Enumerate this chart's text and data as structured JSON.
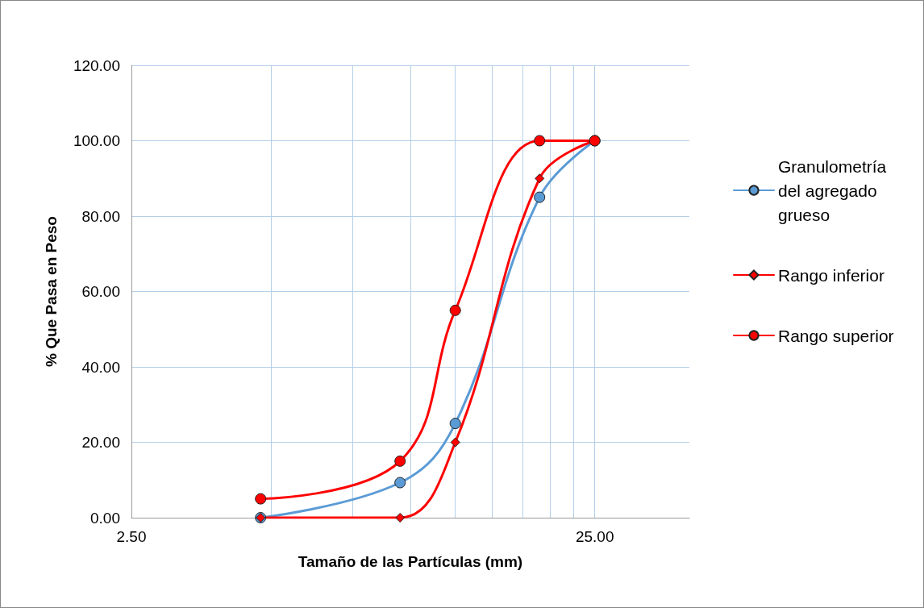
{
  "chart_data": {
    "type": "line",
    "xlabel": "Tamaño de las Partículas (mm)",
    "ylabel": "% Que Pasa en Peso",
    "x": [
      4.75,
      9.5,
      12.5,
      19,
      25
    ],
    "series": [
      {
        "name": "Granulometría del agregado grueso",
        "color": "#5b9bd5",
        "marker": "circle",
        "values": [
          0,
          9.3,
          25,
          85,
          100
        ]
      },
      {
        "name": "Rango inferior",
        "color": "#ff0000",
        "marker": "diamond",
        "values": [
          0,
          0,
          20,
          90,
          100
        ]
      },
      {
        "name": "Rango superior",
        "color": "#ff0000",
        "marker": "circle",
        "values": [
          5,
          15,
          55,
          100,
          100
        ]
      }
    ],
    "log": "x",
    "xlim": [
      2.5,
      40
    ],
    "xticks": [
      {
        "value": 2.5,
        "label": "2.50"
      },
      {
        "value": 5,
        "label": null
      },
      {
        "value": 7.5,
        "label": null
      },
      {
        "value": 10,
        "label": null
      },
      {
        "value": 12.5,
        "label": null
      },
      {
        "value": 15,
        "label": null
      },
      {
        "value": 17.5,
        "label": null
      },
      {
        "value": 20,
        "label": null
      },
      {
        "value": 22.5,
        "label": null
      },
      {
        "value": 25,
        "label": "25.00"
      }
    ],
    "ylim": [
      0,
      120
    ],
    "yticks": [
      {
        "value": 0,
        "label": "0.00"
      },
      {
        "value": 20,
        "label": "20.00"
      },
      {
        "value": 40,
        "label": "40.00"
      },
      {
        "value": 60,
        "label": "60.00"
      },
      {
        "value": 80,
        "label": "80.00"
      },
      {
        "value": 100,
        "label": "100.00"
      },
      {
        "value": 120,
        "label": "120.00"
      }
    ],
    "grid": true,
    "legend": "right"
  }
}
